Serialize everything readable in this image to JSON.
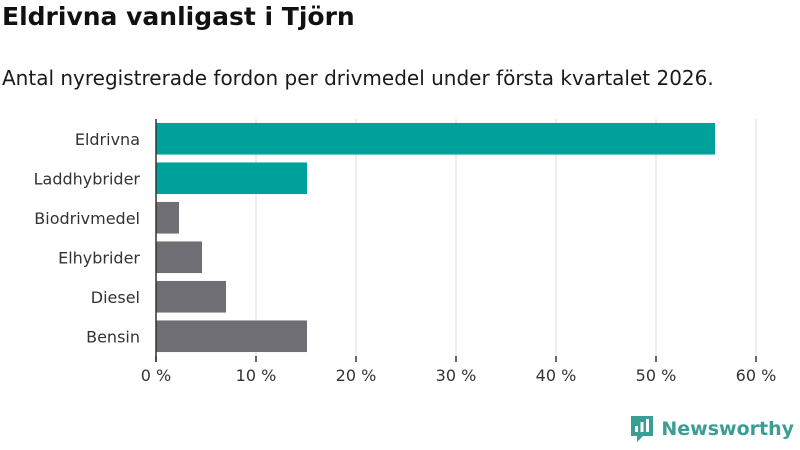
{
  "chart_data": {
    "type": "bar",
    "orientation": "horizontal",
    "title": "Eldrivna vanligast i Tjörn",
    "subtitle": "Antal nyregistrerade fordon per drivmedel under första kvartalet 2026.",
    "categories": [
      "Eldrivna",
      "Laddhybrider",
      "Biodrivmedel",
      "Elhybrider",
      "Diesel",
      "Bensin"
    ],
    "values": [
      55.9,
      15.1,
      2.3,
      4.6,
      7.0,
      15.1
    ],
    "colors": [
      "#00a19a",
      "#00a19a",
      "#6f6e74",
      "#6f6e74",
      "#6f6e74",
      "#6f6e74"
    ],
    "xlim": [
      0,
      60
    ],
    "xticks": [
      0,
      10,
      20,
      30,
      40,
      50,
      60
    ],
    "xtick_labels": [
      "0 %",
      "10 %",
      "20 %",
      "30 %",
      "40 %",
      "50 %",
      "60 %"
    ],
    "grid": true
  },
  "brand": {
    "name": "Newsworthy",
    "icon": "newsworthy-logo-icon",
    "color": "#3a9e94"
  }
}
